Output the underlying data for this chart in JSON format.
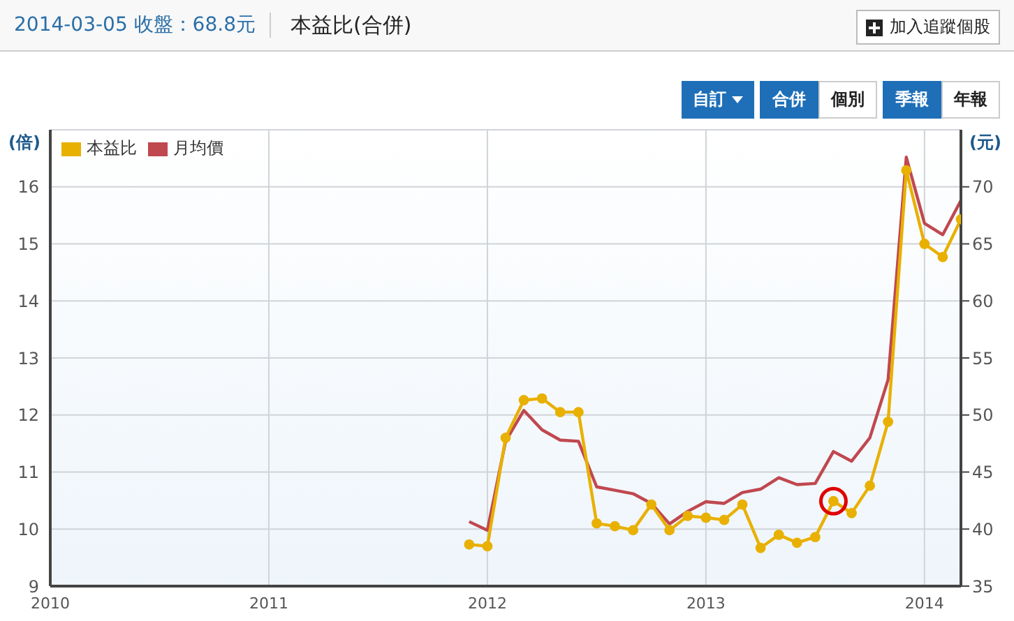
{
  "chart_data": {
    "type": "line",
    "title": "本益比(合併)",
    "subtitle": "2014-03-05 收盤：68.8元",
    "ylabel": "(倍)",
    "y2label": "(元)",
    "annotations": [
      "加入追蹤個股",
      "自訂",
      "合併",
      "個別",
      "季報",
      "年報"
    ],
    "x": [
      "2011-12",
      "2012-01",
      "2012-02",
      "2012-03",
      "2012-04",
      "2012-05",
      "2012-06",
      "2012-07",
      "2012-08",
      "2012-09",
      "2012-10",
      "2012-11",
      "2012-12",
      "2013-01",
      "2013-02",
      "2013-03",
      "2013-04",
      "2013-05",
      "2013-06",
      "2013-07",
      "2013-08",
      "2013-09",
      "2013-10",
      "2013-11",
      "2013-12",
      "2014-01",
      "2014-02",
      "2014-03"
    ],
    "series": [
      {
        "name": "本益比",
        "color": "#e8b000",
        "marker": "circle",
        "values": [
          9.73,
          9.7,
          11.6,
          12.26,
          12.29,
          12.05,
          12.05,
          10.1,
          10.05,
          9.98,
          10.43,
          9.98,
          10.23,
          10.2,
          10.16,
          10.43,
          9.67,
          9.9,
          9.76,
          9.86,
          10.49,
          10.28,
          10.76,
          11.88,
          16.29,
          15.0,
          14.77,
          15.43
        ]
      },
      {
        "name": "月均價",
        "color": "#c0484f",
        "axis": "y2",
        "values": [
          40.65,
          39.9,
          47.7,
          50.4,
          48.7,
          47.8,
          47.7,
          43.7,
          43.4,
          43.1,
          42.25,
          40.45,
          41.55,
          42.4,
          42.25,
          43.2,
          43.5,
          44.5,
          43.9,
          44.0,
          46.8,
          45.95,
          48.0,
          53.1,
          72.6,
          66.8,
          65.8,
          68.8
        ]
      }
    ],
    "xlim": [
      "2010-01",
      "2014-03"
    ],
    "xticks": [
      "2010",
      "2011",
      "2012",
      "2013",
      "2014"
    ],
    "ylim": [
      9,
      17
    ],
    "yticks": [
      9,
      10,
      11,
      12,
      13,
      14,
      15,
      16
    ],
    "y2lim": [
      35,
      75
    ],
    "y2ticks": [
      35,
      40,
      45,
      50,
      55,
      60,
      65,
      70
    ],
    "grid": true,
    "legend": "top left"
  }
}
